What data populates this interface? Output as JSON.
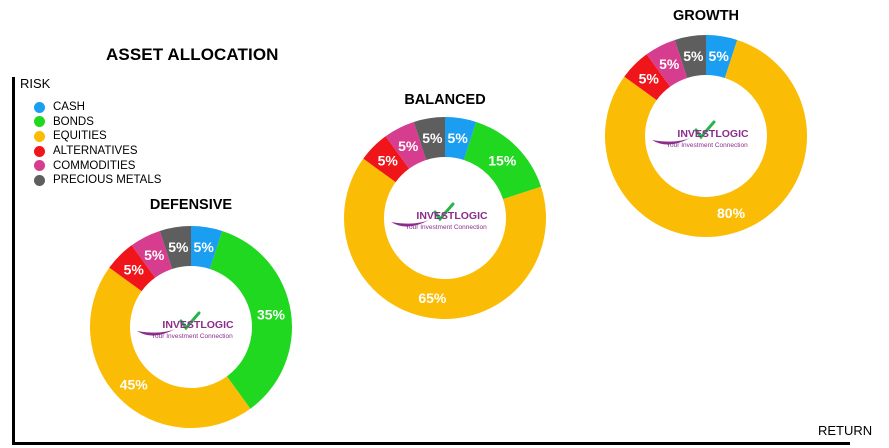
{
  "title": "ASSET ALLOCATION",
  "axes": {
    "y_label": "RISK",
    "x_label": "RETURN"
  },
  "legend": [
    {
      "label": "CASH",
      "color": "#1a9ef2"
    },
    {
      "label": "BONDS",
      "color": "#1fd81f"
    },
    {
      "label": "EQUITIES",
      "color": "#fbbc05"
    },
    {
      "label": "ALTERNATIVES",
      "color": "#f0151a"
    },
    {
      "label": "COMMODITIES",
      "color": "#d63d8e"
    },
    {
      "label": "PRECIOUS METALS",
      "color": "#5e5e5e"
    }
  ],
  "logo": {
    "brand": "INVESTLOGIC",
    "tagline": "Your Investment Connection",
    "purple": "#8b2d8b",
    "check": "#28b34b"
  },
  "chart_data": [
    {
      "type": "pie",
      "title": "DEFENSIVE",
      "categories": [
        "CASH",
        "BONDS",
        "EQUITIES",
        "ALTERNATIVES",
        "COMMODITIES",
        "PRECIOUS METALS"
      ],
      "values": [
        5,
        35,
        45,
        5,
        5,
        5
      ]
    },
    {
      "type": "pie",
      "title": "BALANCED",
      "categories": [
        "CASH",
        "BONDS",
        "EQUITIES",
        "ALTERNATIVES",
        "COMMODITIES",
        "PRECIOUS METALS"
      ],
      "values": [
        5,
        15,
        65,
        5,
        5,
        5
      ]
    },
    {
      "type": "pie",
      "title": "GROWTH",
      "categories": [
        "CASH",
        "EQUITIES",
        "ALTERNATIVES",
        "COMMODITIES",
        "PRECIOUS METALS"
      ],
      "values": [
        5,
        80,
        5,
        5,
        5
      ]
    }
  ]
}
